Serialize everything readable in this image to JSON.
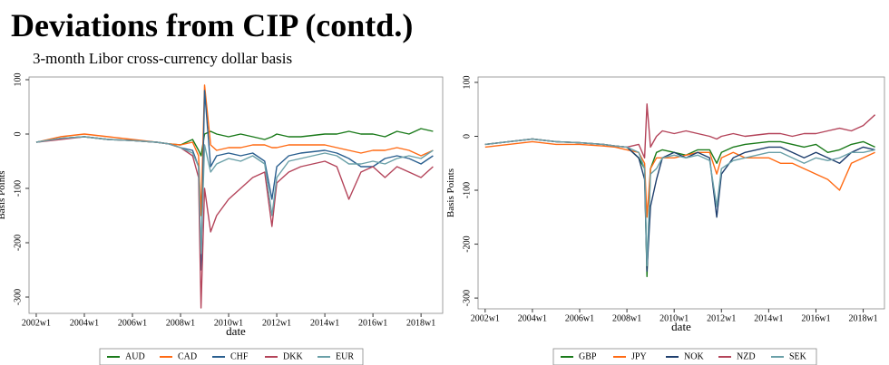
{
  "header": {
    "title": "Deviations from CIP (contd.)",
    "subtitle": "3-month Libor cross-currency dollar basis"
  },
  "chart_data": [
    {
      "type": "line",
      "xlabel": "date",
      "ylabel": "Basis Points",
      "x": [
        2002,
        2003,
        2004,
        2005,
        2006,
        2007,
        2007.5,
        2008,
        2008.5,
        2008.75,
        2008.85,
        2009,
        2009.25,
        2009.5,
        2010,
        2010.5,
        2011,
        2011.5,
        2011.8,
        2012,
        2012.5,
        2013,
        2014,
        2014.5,
        2015,
        2015.5,
        2016,
        2016.5,
        2017,
        2017.5,
        2018,
        2018.5
      ],
      "xlim": [
        2001.7,
        2018.9
      ],
      "xticks": [
        {
          "value": 2002,
          "label": "2002w1"
        },
        {
          "value": 2004,
          "label": "2004w1"
        },
        {
          "value": 2006,
          "label": "2006w1"
        },
        {
          "value": 2008,
          "label": "2008w1"
        },
        {
          "value": 2010,
          "label": "2010w1"
        },
        {
          "value": 2012,
          "label": "2012w1"
        },
        {
          "value": 2014,
          "label": "2014w1"
        },
        {
          "value": 2016,
          "label": "2016w1"
        },
        {
          "value": 2018,
          "label": "2018w1"
        }
      ],
      "ylim": [
        -330,
        105
      ],
      "yticks": [
        -300,
        -200,
        -100,
        0,
        100
      ],
      "series": [
        {
          "name": "AUD",
          "color": "#1a7a1a",
          "values": [
            -15,
            -8,
            -5,
            -10,
            -12,
            -15,
            -18,
            -20,
            -10,
            -30,
            -40,
            0,
            5,
            0,
            -5,
            0,
            -5,
            -10,
            -5,
            0,
            -5,
            -5,
            0,
            0,
            5,
            0,
            0,
            -5,
            5,
            0,
            10,
            5
          ]
        },
        {
          "name": "CAD",
          "color": "#ff6a13",
          "values": [
            -15,
            -5,
            0,
            -5,
            -10,
            -15,
            -18,
            -20,
            -15,
            -40,
            -150,
            90,
            -20,
            -30,
            -25,
            -25,
            -20,
            -20,
            -25,
            -25,
            -20,
            -20,
            -20,
            -25,
            -30,
            -35,
            -30,
            -30,
            -25,
            -30,
            -40,
            -30
          ]
        },
        {
          "name": "CHF",
          "color": "#2a5f8f",
          "values": [
            -15,
            -8,
            -5,
            -10,
            -12,
            -15,
            -18,
            -25,
            -30,
            -60,
            -250,
            80,
            -60,
            -40,
            -35,
            -40,
            -35,
            -50,
            -120,
            -60,
            -40,
            -35,
            -30,
            -35,
            -45,
            -60,
            -60,
            -45,
            -40,
            -45,
            -55,
            -40
          ]
        },
        {
          "name": "DKK",
          "color": "#b4445a",
          "values": [
            -15,
            -10,
            -5,
            -10,
            -12,
            -15,
            -18,
            -25,
            -40,
            -80,
            -320,
            -100,
            -180,
            -150,
            -120,
            -100,
            -80,
            -70,
            -170,
            -90,
            -70,
            -60,
            -50,
            -60,
            -120,
            -70,
            -60,
            -80,
            -60,
            -70,
            -80,
            -60
          ]
        },
        {
          "name": "EUR",
          "color": "#6aa0a8",
          "values": [
            -15,
            -8,
            -5,
            -10,
            -12,
            -15,
            -18,
            -25,
            -35,
            -60,
            -220,
            -20,
            -70,
            -55,
            -45,
            -50,
            -40,
            -55,
            -150,
            -80,
            -50,
            -45,
            -35,
            -40,
            -55,
            -55,
            -50,
            -55,
            -45,
            -40,
            -45,
            -30
          ]
        }
      ]
    },
    {
      "type": "line",
      "xlabel": "date",
      "ylabel": "Basis Points",
      "x": [
        2002,
        2003,
        2004,
        2005,
        2006,
        2007,
        2007.5,
        2008,
        2008.5,
        2008.75,
        2008.85,
        2009,
        2009.25,
        2009.5,
        2010,
        2010.5,
        2011,
        2011.5,
        2011.8,
        2012,
        2012.5,
        2013,
        2014,
        2014.5,
        2015,
        2015.5,
        2016,
        2016.5,
        2017,
        2017.5,
        2018,
        2018.5
      ],
      "xlim": [
        2001.7,
        2018.9
      ],
      "xticks": [
        {
          "value": 2002,
          "label": "2002w1"
        },
        {
          "value": 2004,
          "label": "2004w1"
        },
        {
          "value": 2006,
          "label": "2006w1"
        },
        {
          "value": 2008,
          "label": "2008w1"
        },
        {
          "value": 2010,
          "label": "2010w1"
        },
        {
          "value": 2012,
          "label": "2012w1"
        },
        {
          "value": 2014,
          "label": "2014w1"
        },
        {
          "value": 2016,
          "label": "2016w1"
        },
        {
          "value": 2018,
          "label": "2018w1"
        }
      ],
      "ylim": [
        -320,
        110
      ],
      "yticks": [
        -300,
        -200,
        -100,
        0,
        100
      ],
      "series": [
        {
          "name": "GBP",
          "color": "#1a7a1a",
          "values": [
            -15,
            -10,
            -5,
            -10,
            -12,
            -15,
            -18,
            -20,
            -40,
            -60,
            -260,
            -60,
            -30,
            -25,
            -30,
            -35,
            -25,
            -25,
            -50,
            -30,
            -20,
            -15,
            -10,
            -10,
            -15,
            -20,
            -15,
            -30,
            -25,
            -15,
            -10,
            -20
          ]
        },
        {
          "name": "JPY",
          "color": "#ff6a13",
          "values": [
            -20,
            -15,
            -10,
            -15,
            -15,
            -18,
            -20,
            -25,
            -30,
            -50,
            -150,
            -60,
            -40,
            -40,
            -40,
            -35,
            -30,
            -30,
            -70,
            -40,
            -30,
            -40,
            -40,
            -50,
            -50,
            -60,
            -70,
            -80,
            -100,
            -50,
            -40,
            -30
          ]
        },
        {
          "name": "NOK",
          "color": "#1f3f6e",
          "values": [
            -15,
            -10,
            -5,
            -10,
            -12,
            -15,
            -18,
            -20,
            -40,
            -80,
            -250,
            -130,
            -80,
            -40,
            -30,
            -40,
            -30,
            -40,
            -150,
            -70,
            -40,
            -30,
            -20,
            -20,
            -30,
            -40,
            -30,
            -40,
            -50,
            -30,
            -20,
            -25
          ]
        },
        {
          "name": "NZD",
          "color": "#b4445a",
          "values": [
            -15,
            -10,
            -5,
            -10,
            -12,
            -15,
            -18,
            -20,
            -15,
            -40,
            60,
            -20,
            0,
            10,
            5,
            10,
            5,
            0,
            -5,
            0,
            5,
            0,
            5,
            5,
            0,
            5,
            5,
            10,
            15,
            10,
            20,
            40
          ]
        },
        {
          "name": "SEK",
          "color": "#6aa0a8",
          "values": [
            -15,
            -10,
            -5,
            -10,
            -12,
            -15,
            -18,
            -20,
            -30,
            -60,
            -240,
            -70,
            -60,
            -40,
            -35,
            -40,
            -35,
            -45,
            -130,
            -60,
            -45,
            -40,
            -30,
            -30,
            -40,
            -50,
            -40,
            -45,
            -40,
            -30,
            -30,
            -25
          ]
        }
      ]
    }
  ]
}
